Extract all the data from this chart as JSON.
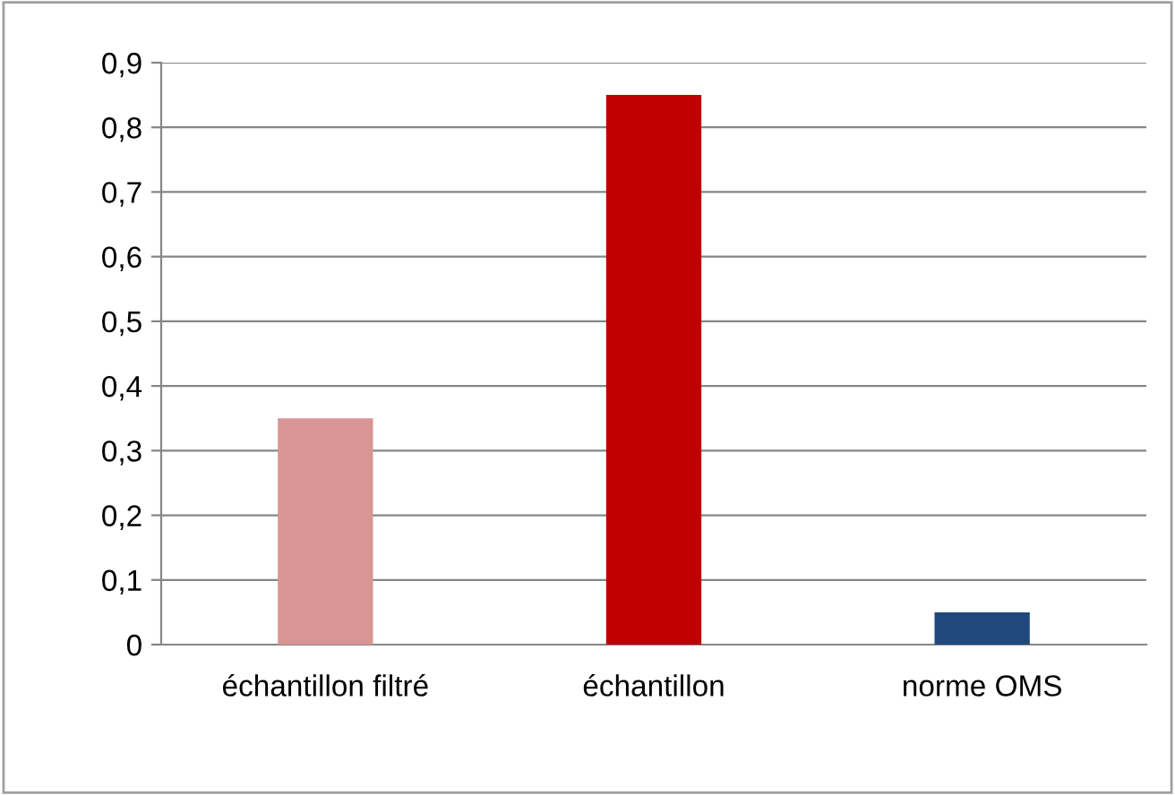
{
  "chart_data": {
    "type": "bar",
    "categories": [
      "échantillon filtré",
      "échantillon",
      "norme OMS"
    ],
    "values": [
      0.35,
      0.85,
      0.05
    ],
    "colors": [
      "#d99694",
      "#c00000",
      "#1f497d"
    ],
    "ylim": [
      0,
      0.9
    ],
    "yticks": [
      {
        "value": 0,
        "label": "0"
      },
      {
        "value": 0.1,
        "label": "0,1"
      },
      {
        "value": 0.2,
        "label": "0,2"
      },
      {
        "value": 0.3,
        "label": "0,3"
      },
      {
        "value": 0.4,
        "label": "0,4"
      },
      {
        "value": 0.5,
        "label": "0,5"
      },
      {
        "value": 0.6,
        "label": "0,6"
      },
      {
        "value": 0.7,
        "label": "0,7"
      },
      {
        "value": 0.8,
        "label": "0,8"
      },
      {
        "value": 0.9,
        "label": "0,9"
      }
    ],
    "grid": "y",
    "legend": false
  }
}
